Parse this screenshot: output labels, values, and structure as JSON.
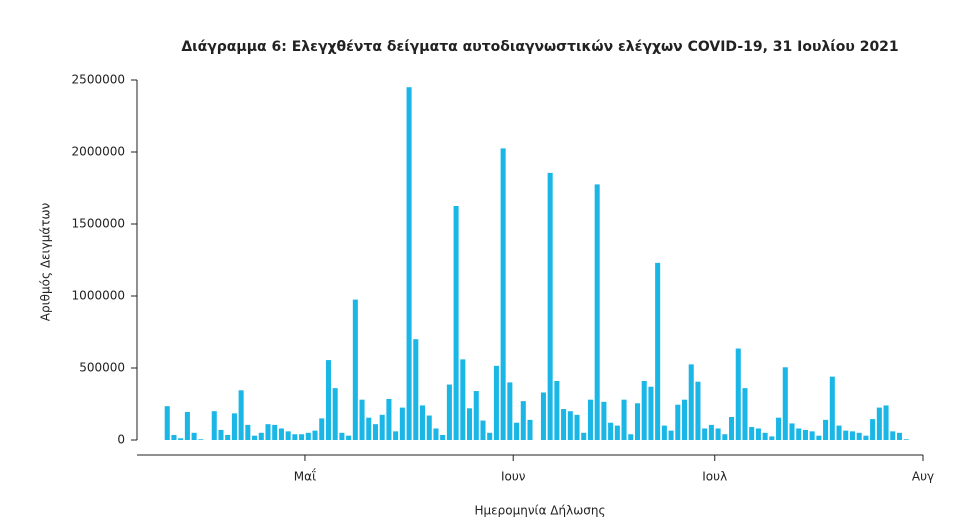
{
  "chart_data": {
    "type": "bar",
    "title": "Διάγραμμα 6: Ελεγχθέντα δείγματα αυτοδιαγνωστικών ελέγχων COVID-19, 31 Ιουλίου 2021",
    "x_label": "Ημερομηνία Δήλωσης",
    "y_label": "Αριθμός Δειγμάτων",
    "color": "#19b6e6",
    "categories": [
      null,
      null,
      null,
      null,
      null,
      null,
      null,
      null,
      null,
      null,
      null,
      null,
      null,
      null,
      null,
      null,
      null,
      null,
      null,
      null,
      null,
      null,
      null,
      null,
      null,
      null,
      null,
      null,
      null,
      null,
      null,
      null,
      null,
      null,
      null,
      null,
      null,
      null,
      null,
      null,
      null,
      null,
      null,
      null,
      null,
      null,
      null,
      null,
      null,
      null,
      null,
      null,
      null,
      null,
      null,
      null,
      null,
      null,
      null,
      null,
      null,
      null,
      null,
      null,
      null,
      null,
      null,
      null,
      null,
      null,
      null,
      null,
      null,
      null,
      null,
      null,
      null,
      null,
      null,
      null,
      null,
      null,
      null,
      null,
      null,
      null,
      null,
      null,
      null,
      null,
      null,
      null,
      null,
      null,
      null,
      null,
      null,
      null,
      null,
      null,
      null,
      null,
      null,
      null,
      null,
      null,
      null,
      null,
      null,
      null,
      null
    ],
    "values": [
      235000,
      35000,
      12000,
      195000,
      50000,
      5000,
      0,
      200000,
      70000,
      35000,
      185000,
      345000,
      105000,
      30000,
      50000,
      110000,
      105000,
      80000,
      60000,
      40000,
      40000,
      50000,
      65000,
      150000,
      555000,
      360000,
      50000,
      30000,
      975000,
      280000,
      155000,
      110000,
      175000,
      285000,
      60000,
      225000,
      2450000,
      700000,
      240000,
      170000,
      80000,
      35000,
      385000,
      1625000,
      560000,
      220000,
      340000,
      135000,
      50000,
      515000,
      2025000,
      400000,
      120000,
      270000,
      140000,
      0,
      330000,
      1855000,
      410000,
      215000,
      200000,
      175000,
      50000,
      280000,
      1775000,
      265000,
      120000,
      100000,
      280000,
      40000,
      255000,
      410000,
      370000,
      1230000,
      100000,
      65000,
      245000,
      280000,
      525000,
      405000,
      80000,
      105000,
      80000,
      40000,
      160000,
      635000,
      360000,
      90000,
      80000,
      50000,
      25000,
      155000,
      505000,
      115000,
      80000,
      70000,
      60000,
      30000,
      140000,
      440000,
      100000,
      65000,
      60000,
      50000,
      30000,
      145000,
      225000,
      240000,
      60000,
      50000,
      5000
    ],
    "xlim": [
      -4.5,
      112.5
    ],
    "xticks": [
      {
        "value": 20.5,
        "label": "Μαΐ"
      },
      {
        "value": 51.5,
        "label": "Ιουν"
      },
      {
        "value": 81.5,
        "label": "Ιουλ"
      },
      {
        "value": 112.5,
        "label": "Αυγ"
      }
    ],
    "ylim": [
      0,
      2500000
    ],
    "yticks": [
      0,
      500000,
      1000000,
      1500000,
      2000000,
      2500000
    ]
  }
}
